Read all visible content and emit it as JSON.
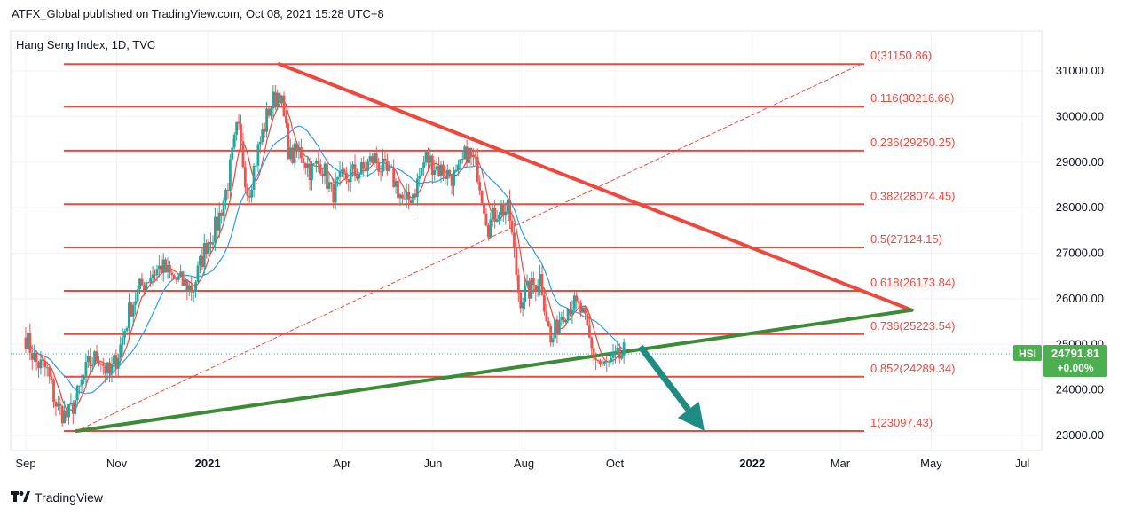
{
  "header": {
    "published": "ATFX_Global published on TradingView.com, Oct 08, 2021 15:28 UTC+8"
  },
  "footer": {
    "brand": "TradingView"
  },
  "chart_data": {
    "type": "candlestick",
    "title": "Hang Seng Index, 1D, TVC",
    "symbol": "HSI",
    "last_price": "24791.81",
    "change": "+0.00%",
    "y_ticks": [
      "31000.00",
      "30000.00",
      "29000.00",
      "28000.00",
      "27000.00",
      "26000.00",
      "25000.00",
      "24000.00",
      "23000.00"
    ],
    "x_ticks": [
      "Sep",
      "Nov",
      "2021",
      "Apr",
      "Jun",
      "Aug",
      "Oct",
      "2022",
      "Mar",
      "May",
      "Jul"
    ],
    "ylim": [
      22700,
      31950
    ],
    "fib_levels": [
      {
        "ratio": "0",
        "price": 31150.86,
        "label": "0(31150.86)"
      },
      {
        "ratio": "0.116",
        "price": 30216.66,
        "label": "0.116(30216.66)"
      },
      {
        "ratio": "0.236",
        "price": 29250.25,
        "label": "0.236(29250.25)"
      },
      {
        "ratio": "0.382",
        "price": 28074.45,
        "label": "0.382(28074.45)"
      },
      {
        "ratio": "0.5",
        "price": 27124.15,
        "label": "0.5(27124.15)"
      },
      {
        "ratio": "0.618",
        "price": 26173.84,
        "label": "0.618(26173.84)"
      },
      {
        "ratio": "0.736",
        "price": 25223.54,
        "label": "0.736(25223.54)"
      },
      {
        "ratio": "0.852",
        "price": 24289.34,
        "label": "0.852(24289.34)"
      },
      {
        "ratio": "1",
        "price": 23097.43,
        "label": "1(23097.43)"
      }
    ],
    "price_path": [
      [
        "2020-09-01",
        25150
      ],
      [
        "2020-09-08",
        24600
      ],
      [
        "2020-09-15",
        24450
      ],
      [
        "2020-09-22",
        23600
      ],
      [
        "2020-09-29",
        23400
      ],
      [
        "2020-10-06",
        23900
      ],
      [
        "2020-10-13",
        24550
      ],
      [
        "2020-10-20",
        24750
      ],
      [
        "2020-10-27",
        24300
      ],
      [
        "2020-11-03",
        24900
      ],
      [
        "2020-11-10",
        25800
      ],
      [
        "2020-11-17",
        26250
      ],
      [
        "2020-11-24",
        26550
      ],
      [
        "2020-12-01",
        26700
      ],
      [
        "2020-12-08",
        26450
      ],
      [
        "2020-12-15",
        26350
      ],
      [
        "2020-12-22",
        26200
      ],
      [
        "2020-12-31",
        27200
      ],
      [
        "2021-01-07",
        27600
      ],
      [
        "2021-01-14",
        28450
      ],
      [
        "2021-01-21",
        29800
      ],
      [
        "2021-01-28",
        28300
      ],
      [
        "2021-02-04",
        29300
      ],
      [
        "2021-02-11",
        30150
      ],
      [
        "2021-02-18",
        30600
      ],
      [
        "2021-02-25",
        29100
      ],
      [
        "2021-03-04",
        29250
      ],
      [
        "2021-03-11",
        28800
      ],
      [
        "2021-03-18",
        29000
      ],
      [
        "2021-03-25",
        28300
      ],
      [
        "2021-04-01",
        28600
      ],
      [
        "2021-04-08",
        28750
      ],
      [
        "2021-04-15",
        28800
      ],
      [
        "2021-04-22",
        29100
      ],
      [
        "2021-04-29",
        28800
      ],
      [
        "2021-05-06",
        28600
      ],
      [
        "2021-05-13",
        28050
      ],
      [
        "2021-05-20",
        28400
      ],
      [
        "2021-05-27",
        29100
      ],
      [
        "2021-06-03",
        28900
      ],
      [
        "2021-06-10",
        28750
      ],
      [
        "2021-06-17",
        28650
      ],
      [
        "2021-06-24",
        29250
      ],
      [
        "2021-07-01",
        28800
      ],
      [
        "2021-07-08",
        27600
      ],
      [
        "2021-07-15",
        28000
      ],
      [
        "2021-07-22",
        27900
      ],
      [
        "2021-07-29",
        26000
      ],
      [
        "2021-08-05",
        26200
      ],
      [
        "2021-08-12",
        26500
      ],
      [
        "2021-08-19",
        25000
      ],
      [
        "2021-08-26",
        25700
      ],
      [
        "2021-09-02",
        25900
      ],
      [
        "2021-09-09",
        25700
      ],
      [
        "2021-09-16",
        24800
      ],
      [
        "2021-09-23",
        24500
      ],
      [
        "2021-09-30",
        24600
      ],
      [
        "2021-10-07",
        24800
      ]
    ],
    "trendlines": [
      {
        "name": "resistance",
        "color": "#f0473d",
        "from": [
          "2021-02-18",
          31150.86
        ],
        "to": [
          "2022-04-18",
          25750
        ]
      },
      {
        "name": "support",
        "color": "#3d8b37",
        "from": [
          "2020-10-05",
          23097.43
        ],
        "to": [
          "2022-04-18",
          25750
        ]
      },
      {
        "name": "fib-baseline",
        "color": "#f0473d",
        "dashed": true,
        "from": [
          "2020-10-05",
          23097.43
        ],
        "to": [
          "2022-03-15",
          31150.86
        ]
      }
    ],
    "projection": {
      "color": "#1e8c82",
      "from": [
        "2021-10-18",
        24950
      ],
      "to": [
        "2021-11-30",
        23100
      ]
    },
    "colors": {
      "up": "#26a69a",
      "down": "#ef5350",
      "fib": "#f0473d",
      "ma_fast": "#f0473d",
      "ma_slow": "#2e9bf0",
      "badge": "#4caf50"
    }
  }
}
